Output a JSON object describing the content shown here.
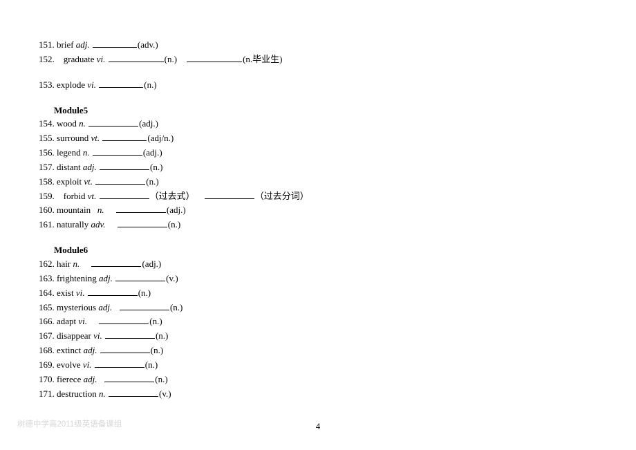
{
  "lines": [
    {
      "kind": "entry",
      "num": "151",
      "word": "brief",
      "pos": "adj.",
      "lead": " ",
      "tails": [
        {
          "w": "b64",
          "label": "(adv.)"
        }
      ]
    },
    {
      "kind": "entry",
      "num": "152",
      "word": "graduate",
      "pos": "vi.",
      "lead": " ",
      "tails": [
        {
          "w": "b80",
          "label": "(n.)"
        },
        {
          "w": "b80",
          "label": "(n.毕业生)"
        }
      ]
    },
    {
      "kind": "entry",
      "num": "153",
      "word": "explode",
      "pos": "vi.",
      "lead": " ",
      "cls": "gap18",
      "tails": [
        {
          "w": "b64",
          "label": "(n.)"
        }
      ]
    },
    {
      "kind": "heading",
      "text": "Module5"
    },
    {
      "kind": "entry",
      "num": "154",
      "word": "wood",
      "pos": "n.",
      "lead": " ",
      "tails": [
        {
          "w": "b72",
          "label": "(adj.)"
        }
      ]
    },
    {
      "kind": "entry",
      "num": "155",
      "word": "surround",
      "pos": "vt.",
      "lead": " ",
      "tails": [
        {
          "w": "b64",
          "label": "(adj/n.)"
        }
      ]
    },
    {
      "kind": "entry",
      "num": "156",
      "word": "legend",
      "pos": "n.",
      "lead": " ",
      "tails": [
        {
          "w": "b72",
          "label": "(adj.)"
        }
      ]
    },
    {
      "kind": "entry",
      "num": "157",
      "word": "distant",
      "pos": "adj.",
      "lead": " ",
      "tails": [
        {
          "w": "b72",
          "label": "(n.)"
        }
      ]
    },
    {
      "kind": "entry",
      "num": "158",
      "word": "exploit",
      "pos": "vt.",
      "lead": " ",
      "tails": [
        {
          "w": "b72",
          "label": "(n.)"
        }
      ]
    },
    {
      "kind": "entry",
      "num": "159",
      "word": "forbid",
      "pos": "vt.",
      "lead": " ",
      "tails": [
        {
          "w": "b72",
          "label": "（过去式）"
        },
        {
          "w": "b72",
          "label": "（过去分词）"
        }
      ]
    },
    {
      "kind": "entry",
      "num": "160",
      "word": "mountain ",
      "pos": "n.",
      "lead": " ",
      "tails": [
        {
          "pre": " ",
          "w": "b72",
          "label": "(adj.)"
        }
      ]
    },
    {
      "kind": "entry",
      "num": "161",
      "word": "naturally",
      "pos": "adv.",
      "lead": " ",
      "tails": [
        {
          "pre": " ",
          "w": "b72",
          "label": "(n.)"
        }
      ]
    },
    {
      "kind": "heading",
      "text": "Module6"
    },
    {
      "kind": "entry",
      "num": "162",
      "word": "hair",
      "pos": "n.",
      "lead": " ",
      "tails": [
        {
          "pre": " ",
          "w": "b72",
          "label": "(adj.)"
        }
      ]
    },
    {
      "kind": "entry",
      "num": "163",
      "word": "frightening",
      "pos": "adj.",
      "lead": " ",
      "tails": [
        {
          "w": "b72",
          "label": "(v.)"
        }
      ]
    },
    {
      "kind": "entry",
      "num": "164",
      "word": "exist",
      "pos": "vi.",
      "lead": " ",
      "tails": [
        {
          "w": "b72",
          "label": "(n.)"
        }
      ]
    },
    {
      "kind": "entry",
      "num": "165",
      "word": "mysterious",
      "pos": "adj.",
      "lead": " ",
      "tails": [
        {
          "pre": " ",
          "w": "b72",
          "label": "(n.)"
        }
      ]
    },
    {
      "kind": "entry",
      "num": "166",
      "word": "adapt",
      "pos": "vi.",
      "lead": " ",
      "tails": [
        {
          "pre": " ",
          "w": "b72",
          "label": "(n.)"
        }
      ]
    },
    {
      "kind": "entry",
      "num": "167",
      "word": "disappear",
      "pos": "vi.",
      "lead": " ",
      "tails": [
        {
          "w": "b72",
          "label": "(n.)"
        }
      ]
    },
    {
      "kind": "entry",
      "num": "168",
      "word": "extinct",
      "pos": "adj.",
      "lead": " ",
      "tails": [
        {
          "w": "b72",
          "label": "(n.)"
        }
      ]
    },
    {
      "kind": "entry",
      "num": "169",
      "word": "evolve",
      "pos": "vi.",
      "lead": " ",
      "tails": [
        {
          "w": "b72",
          "label": "(n.)"
        }
      ]
    },
    {
      "kind": "entry",
      "num": "170",
      "word": "fierece",
      "pos": "adj.",
      "lead": " ",
      "tails": [
        {
          "pre": " ",
          "w": "b72",
          "label": "(n.)"
        }
      ]
    },
    {
      "kind": "entry",
      "num": "171",
      "word": "destruction",
      "pos": "n.",
      "lead": " ",
      "tails": [
        {
          "w": "b72",
          "label": "(v.)"
        }
      ]
    }
  ],
  "footer_left": "树德中学高2011级英语备课组",
  "page_number": "4"
}
